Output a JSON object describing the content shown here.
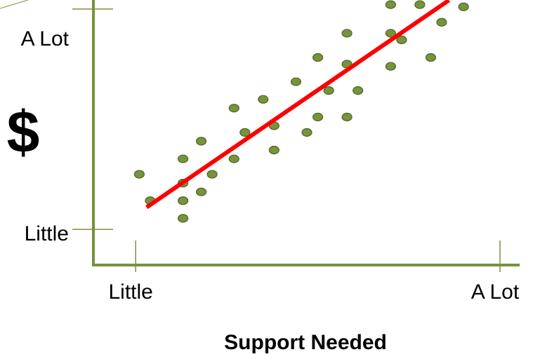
{
  "chart_data": {
    "type": "scatter",
    "y_label": "$",
    "x_label": "Support Needed",
    "xlim": [
      -1.16,
      10.54
    ],
    "ylim": [
      -1.62,
      10.41
    ],
    "xticks": [
      {
        "value": 0,
        "label": "Little"
      },
      {
        "value": 10,
        "label": "A Lot"
      }
    ],
    "yticks": [
      {
        "value": 0,
        "label": "Little"
      },
      {
        "value": 10,
        "label": "A Lot"
      }
    ],
    "color": "#77933c",
    "x": [
      0.1,
      0.4,
      1.3,
      1.3,
      1.3,
      1.3,
      1.8,
      1.8,
      2.1,
      2.7,
      2.7,
      3.0,
      3.5,
      3.8,
      3.8,
      4.4,
      4.7,
      5.0,
      5.0,
      5.3,
      5.8,
      5.8,
      5.8,
      6.1,
      7.0,
      7.0,
      7.0,
      7.3,
      7.8,
      8.1,
      8.4,
      9.0
    ],
    "values": [
      2.5,
      1.3,
      3.2,
      2.1,
      1.3,
      0.5,
      4.0,
      1.7,
      2.5,
      3.2,
      5.5,
      4.4,
      5.9,
      4.7,
      3.6,
      6.7,
      4.4,
      7.8,
      5.1,
      6.3,
      8.9,
      7.5,
      5.1,
      6.3,
      10.2,
      8.9,
      7.4,
      8.6,
      10.2,
      7.8,
      9.4,
      10.1
    ],
    "trend": {
      "color": "#ff0000",
      "x": [
        0.3,
        8.6
      ],
      "values": [
        1.0,
        10.4
      ]
    }
  }
}
